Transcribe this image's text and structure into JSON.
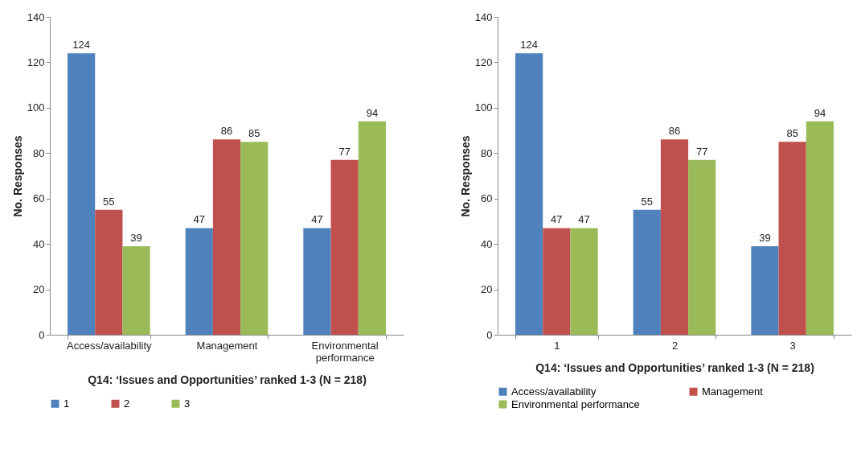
{
  "chart_data": [
    {
      "type": "bar",
      "xlabel": "Q14:  ‘Issues and Opportunities’ ranked 1-3 (N = 218)",
      "ylabel": "No. Responses",
      "categories": [
        "Access/availability",
        "Management",
        "Environmental performance"
      ],
      "series": [
        {
          "name": "1",
          "color": "#4f81bd",
          "values": [
            124,
            47,
            47
          ]
        },
        {
          "name": "2",
          "color": "#c0504d",
          "values": [
            55,
            86,
            77
          ]
        },
        {
          "name": "3",
          "color": "#9bbb59",
          "values": [
            39,
            85,
            94
          ]
        }
      ],
      "ylim": [
        0,
        140
      ],
      "yticks": [
        0,
        20,
        40,
        60,
        80,
        100,
        120,
        140
      ],
      "data_labels": true,
      "legend": "bottom",
      "grid": false
    },
    {
      "type": "bar",
      "xlabel": "Q14:  ‘Issues and Opportunities’ ranked 1-3 (N = 218)",
      "ylabel": "No. Responses",
      "categories": [
        "1",
        "2",
        "3"
      ],
      "series": [
        {
          "name": "Access/availability",
          "color": "#4f81bd",
          "values": [
            124,
            55,
            39
          ]
        },
        {
          "name": "Management",
          "color": "#c0504d",
          "values": [
            47,
            86,
            85
          ]
        },
        {
          "name": "Environmental performance",
          "color": "#9bbb59",
          "values": [
            47,
            77,
            94
          ]
        }
      ],
      "ylim": [
        0,
        140
      ],
      "yticks": [
        0,
        20,
        40,
        60,
        80,
        100,
        120,
        140
      ],
      "data_labels": true,
      "legend": "bottom",
      "grid": false
    }
  ]
}
